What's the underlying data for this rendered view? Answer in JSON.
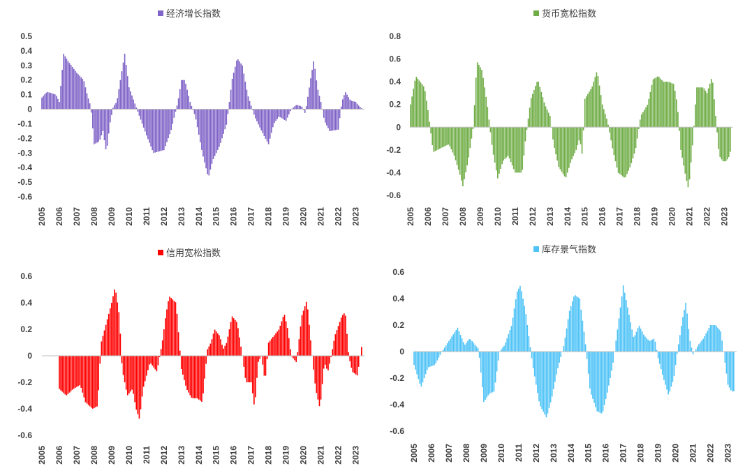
{
  "chart_data": [
    {
      "type": "bar",
      "title": "经济增长指数",
      "color": "#8064C8",
      "xlim": [
        2005,
        2023.5
      ],
      "ylim": [
        -0.6,
        0.5
      ],
      "yticks": [
        "0.5",
        "0.4",
        "0.3",
        "0.2",
        "0.1",
        "0",
        "-0.1",
        "-0.2",
        "-0.3",
        "-0.4",
        "-0.5",
        "-0.6"
      ],
      "xticks": [
        "2005",
        "2006",
        "2007",
        "2008",
        "2009",
        "2010",
        "2011",
        "2012",
        "2013",
        "2014",
        "2015",
        "2016",
        "2017",
        "2018",
        "2019",
        "2020",
        "2021",
        "2022",
        "2023"
      ],
      "legend": "top-center",
      "grid": false,
      "series_points": [
        [
          2005.0,
          0.08
        ],
        [
          2005.3,
          0.12
        ],
        [
          2005.8,
          0.1
        ],
        [
          2006.0,
          0.05
        ],
        [
          2006.25,
          0.38
        ],
        [
          2006.5,
          0.33
        ],
        [
          2007.0,
          0.25
        ],
        [
          2007.4,
          0.2
        ],
        [
          2007.6,
          0.1
        ],
        [
          2007.8,
          0.02
        ],
        [
          2008.0,
          -0.24
        ],
        [
          2008.3,
          -0.22
        ],
        [
          2008.5,
          -0.15
        ],
        [
          2008.7,
          -0.3
        ],
        [
          2008.9,
          -0.1
        ],
        [
          2009.1,
          0.02
        ],
        [
          2009.3,
          0.05
        ],
        [
          2009.5,
          0.2
        ],
        [
          2009.75,
          0.38
        ],
        [
          2010.0,
          0.15
        ],
        [
          2010.3,
          0.05
        ],
        [
          2010.6,
          -0.05
        ],
        [
          2011.0,
          -0.18
        ],
        [
          2011.4,
          -0.3
        ],
        [
          2012.0,
          -0.28
        ],
        [
          2012.4,
          -0.15
        ],
        [
          2012.8,
          0.05
        ],
        [
          2013.0,
          0.2
        ],
        [
          2013.2,
          0.2
        ],
        [
          2013.5,
          0.05
        ],
        [
          2013.8,
          -0.05
        ],
        [
          2014.2,
          -0.3
        ],
        [
          2014.55,
          -0.47
        ],
        [
          2014.8,
          -0.35
        ],
        [
          2015.2,
          -0.25
        ],
        [
          2015.6,
          -0.1
        ],
        [
          2015.9,
          0.2
        ],
        [
          2016.2,
          0.35
        ],
        [
          2016.5,
          0.3
        ],
        [
          2016.8,
          0.1
        ],
        [
          2017.2,
          -0.05
        ],
        [
          2017.6,
          -0.15
        ],
        [
          2018.0,
          -0.24
        ],
        [
          2018.3,
          -0.1
        ],
        [
          2018.6,
          -0.05
        ],
        [
          2019.0,
          -0.08
        ],
        [
          2019.3,
          0.0
        ],
        [
          2019.6,
          0.03
        ],
        [
          2019.9,
          0.02
        ],
        [
          2020.1,
          -0.03
        ],
        [
          2020.4,
          0.2
        ],
        [
          2020.6,
          0.34
        ],
        [
          2020.8,
          0.15
        ],
        [
          2021.0,
          0.05
        ],
        [
          2021.2,
          -0.08
        ],
        [
          2021.5,
          -0.15
        ],
        [
          2022.0,
          -0.14
        ],
        [
          2022.2,
          0.05
        ],
        [
          2022.4,
          0.12
        ],
        [
          2022.7,
          0.06
        ],
        [
          2023.0,
          0.05
        ],
        [
          2023.2,
          0.02
        ],
        [
          2023.4,
          0.0
        ]
      ]
    },
    {
      "type": "bar",
      "title": "货币宽松指数",
      "color": "#70AD47",
      "xlim": [
        2005,
        2023.5
      ],
      "ylim": [
        -0.6,
        0.8
      ],
      "yticks": [
        "0.8",
        "0.6",
        "0.4",
        "0.2",
        "0",
        "-0.2",
        "-0.4",
        "-0.6"
      ],
      "xticks": [
        "2005",
        "2006",
        "2007",
        "2008",
        "2009",
        "2010",
        "2011",
        "2012",
        "2013",
        "2014",
        "2015",
        "2016",
        "2017",
        "2018",
        "2019",
        "2020",
        "2021",
        "2022",
        "2023"
      ],
      "legend": "top-center",
      "grid": false,
      "series_points": [
        [
          2005.0,
          0.2
        ],
        [
          2005.3,
          0.45
        ],
        [
          2005.8,
          0.35
        ],
        [
          2006.0,
          0.15
        ],
        [
          2006.3,
          -0.22
        ],
        [
          2006.8,
          -0.18
        ],
        [
          2007.2,
          -0.15
        ],
        [
          2007.5,
          -0.25
        ],
        [
          2007.8,
          -0.4
        ],
        [
          2008.0,
          -0.52
        ],
        [
          2008.3,
          -0.3
        ],
        [
          2008.6,
          0.0
        ],
        [
          2008.8,
          0.58
        ],
        [
          2009.1,
          0.5
        ],
        [
          2009.4,
          0.2
        ],
        [
          2009.7,
          -0.2
        ],
        [
          2010.0,
          -0.45
        ],
        [
          2010.3,
          -0.3
        ],
        [
          2010.6,
          -0.25
        ],
        [
          2011.0,
          -0.4
        ],
        [
          2011.4,
          -0.4
        ],
        [
          2011.6,
          -0.1
        ],
        [
          2011.9,
          0.25
        ],
        [
          2012.3,
          0.42
        ],
        [
          2012.7,
          0.2
        ],
        [
          2013.0,
          0.1
        ],
        [
          2013.2,
          -0.15
        ],
        [
          2013.5,
          -0.35
        ],
        [
          2013.9,
          -0.45
        ],
        [
          2014.2,
          -0.3
        ],
        [
          2014.5,
          -0.2
        ],
        [
          2014.7,
          -0.1
        ],
        [
          2014.85,
          -0.25
        ],
        [
          2015.0,
          0.25
        ],
        [
          2015.4,
          0.35
        ],
        [
          2015.7,
          0.5
        ],
        [
          2016.0,
          0.2
        ],
        [
          2016.3,
          0.05
        ],
        [
          2016.6,
          -0.2
        ],
        [
          2016.9,
          -0.4
        ],
        [
          2017.3,
          -0.45
        ],
        [
          2017.6,
          -0.35
        ],
        [
          2017.9,
          -0.2
        ],
        [
          2018.2,
          0.1
        ],
        [
          2018.6,
          0.2
        ],
        [
          2018.9,
          0.42
        ],
        [
          2019.2,
          0.45
        ],
        [
          2019.5,
          0.4
        ],
        [
          2019.8,
          0.4
        ],
        [
          2020.1,
          0.38
        ],
        [
          2020.3,
          0.2
        ],
        [
          2020.5,
          -0.2
        ],
        [
          2020.8,
          -0.45
        ],
        [
          2020.95,
          -0.55
        ],
        [
          2021.2,
          -0.1
        ],
        [
          2021.4,
          0.35
        ],
        [
          2021.8,
          0.35
        ],
        [
          2022.0,
          0.3
        ],
        [
          2022.3,
          0.45
        ],
        [
          2022.5,
          0.1
        ],
        [
          2022.7,
          -0.25
        ],
        [
          2022.9,
          -0.3
        ],
        [
          2023.1,
          -0.3
        ],
        [
          2023.3,
          -0.25
        ],
        [
          2023.4,
          -0.15
        ]
      ]
    },
    {
      "type": "bar",
      "title": "信用宽松指数",
      "color": "#FF0000",
      "xlim": [
        2005,
        2023.5
      ],
      "ylim": [
        -0.6,
        0.6
      ],
      "yticks": [
        "0.6",
        "0.4",
        "0.2",
        "0",
        "-0.2",
        "-0.4",
        "-0.6"
      ],
      "xticks": [
        "2005",
        "2006",
        "2007",
        "2008",
        "2009",
        "2010",
        "2011",
        "2012",
        "2013",
        "2014",
        "2015",
        "2016",
        "2017",
        "2018",
        "2019",
        "2020",
        "2021",
        "2022",
        "2023"
      ],
      "legend": "top-center",
      "grid": false,
      "series_points": [
        [
          2006.0,
          -0.25
        ],
        [
          2006.4,
          -0.3
        ],
        [
          2006.8,
          -0.25
        ],
        [
          2007.2,
          -0.22
        ],
        [
          2007.5,
          -0.35
        ],
        [
          2007.9,
          -0.4
        ],
        [
          2008.2,
          -0.38
        ],
        [
          2008.4,
          0.1
        ],
        [
          2008.7,
          0.25
        ],
        [
          2009.0,
          0.4
        ],
        [
          2009.2,
          0.52
        ],
        [
          2009.45,
          0.3
        ],
        [
          2009.6,
          -0.1
        ],
        [
          2009.9,
          -0.3
        ],
        [
          2010.2,
          -0.25
        ],
        [
          2010.4,
          -0.4
        ],
        [
          2010.6,
          -0.48
        ],
        [
          2010.8,
          -0.25
        ],
        [
          2011.2,
          -0.05
        ],
        [
          2011.6,
          -0.12
        ],
        [
          2011.9,
          0.1
        ],
        [
          2012.1,
          0.3
        ],
        [
          2012.3,
          0.45
        ],
        [
          2012.7,
          0.4
        ],
        [
          2013.0,
          -0.1
        ],
        [
          2013.3,
          -0.25
        ],
        [
          2013.6,
          -0.32
        ],
        [
          2013.9,
          -0.32
        ],
        [
          2014.2,
          -0.35
        ],
        [
          2014.5,
          0.05
        ],
        [
          2014.7,
          0.1
        ],
        [
          2014.9,
          0.2
        ],
        [
          2015.2,
          0.15
        ],
        [
          2015.4,
          0.05
        ],
        [
          2015.6,
          0.1
        ],
        [
          2015.9,
          0.3
        ],
        [
          2016.2,
          0.25
        ],
        [
          2016.5,
          0.0
        ],
        [
          2016.7,
          -0.2
        ],
        [
          2017.0,
          -0.2
        ],
        [
          2017.2,
          -0.4
        ],
        [
          2017.4,
          -0.05
        ],
        [
          2017.6,
          0.0
        ],
        [
          2017.8,
          -0.2
        ],
        [
          2018.0,
          0.1
        ],
        [
          2018.3,
          0.15
        ],
        [
          2018.6,
          0.2
        ],
        [
          2018.9,
          0.32
        ],
        [
          2019.1,
          0.2
        ],
        [
          2019.3,
          0.0
        ],
        [
          2019.6,
          -0.05
        ],
        [
          2019.9,
          0.3
        ],
        [
          2020.2,
          0.42
        ],
        [
          2020.5,
          0.0
        ],
        [
          2020.7,
          -0.25
        ],
        [
          2020.95,
          -0.4
        ],
        [
          2021.2,
          -0.05
        ],
        [
          2021.4,
          -0.12
        ],
        [
          2021.6,
          0.0
        ],
        [
          2021.8,
          0.15
        ],
        [
          2022.2,
          0.3
        ],
        [
          2022.4,
          0.33
        ],
        [
          2022.6,
          0.0
        ],
        [
          2022.8,
          -0.12
        ],
        [
          2023.1,
          -0.15
        ],
        [
          2023.3,
          0.05
        ],
        [
          2023.4,
          0.1
        ]
      ]
    },
    {
      "type": "bar",
      "title": "库存景气指数",
      "color": "#4FC3F7",
      "xlim": [
        2005,
        2023.5
      ],
      "ylim": [
        -0.6,
        0.6
      ],
      "yticks": [
        "0.6",
        "0.4",
        "0.2",
        "0",
        "-0.2",
        "-0.4",
        "-0.6"
      ],
      "xticks": [
        "2005",
        "2006",
        "2007",
        "2008",
        "2009",
        "2010",
        "2011",
        "2012",
        "2013",
        "2014",
        "2015",
        "2016",
        "2017",
        "2018",
        "2019",
        "2020",
        "2021",
        "2022",
        "2023"
      ],
      "legend": "top-center",
      "grid": false,
      "series_points": [
        [
          2005.0,
          -0.1
        ],
        [
          2005.4,
          -0.27
        ],
        [
          2005.8,
          -0.12
        ],
        [
          2006.2,
          -0.1
        ],
        [
          2006.6,
          0.0
        ],
        [
          2007.0,
          0.08
        ],
        [
          2007.5,
          0.18
        ],
        [
          2007.9,
          0.05
        ],
        [
          2008.2,
          0.1
        ],
        [
          2008.7,
          0.02
        ],
        [
          2009.0,
          -0.38
        ],
        [
          2009.3,
          -0.32
        ],
        [
          2009.6,
          -0.3
        ],
        [
          2009.9,
          0.0
        ],
        [
          2010.2,
          0.05
        ],
        [
          2010.6,
          0.2
        ],
        [
          2010.9,
          0.45
        ],
        [
          2011.1,
          0.5
        ],
        [
          2011.4,
          0.3
        ],
        [
          2011.8,
          -0.1
        ],
        [
          2012.2,
          -0.4
        ],
        [
          2012.6,
          -0.5
        ],
        [
          2012.9,
          -0.35
        ],
        [
          2013.2,
          -0.15
        ],
        [
          2013.6,
          0.05
        ],
        [
          2013.9,
          0.3
        ],
        [
          2014.2,
          0.43
        ],
        [
          2014.5,
          0.4
        ],
        [
          2014.8,
          0.1
        ],
        [
          2015.1,
          -0.3
        ],
        [
          2015.5,
          -0.45
        ],
        [
          2015.8,
          -0.47
        ],
        [
          2016.1,
          -0.3
        ],
        [
          2016.4,
          -0.1
        ],
        [
          2016.7,
          0.2
        ],
        [
          2017.0,
          0.5
        ],
        [
          2017.3,
          0.3
        ],
        [
          2017.6,
          0.1
        ],
        [
          2017.9,
          0.2
        ],
        [
          2018.2,
          0.12
        ],
        [
          2018.5,
          0.08
        ],
        [
          2018.8,
          0.1
        ],
        [
          2019.0,
          -0.05
        ],
        [
          2019.3,
          -0.2
        ],
        [
          2019.6,
          -0.33
        ],
        [
          2019.9,
          -0.2
        ],
        [
          2020.1,
          0.0
        ],
        [
          2020.4,
          0.25
        ],
        [
          2020.6,
          0.38
        ],
        [
          2020.8,
          0.1
        ],
        [
          2021.0,
          -0.02
        ],
        [
          2021.3,
          0.05
        ],
        [
          2021.6,
          0.1
        ],
        [
          2022.0,
          0.2
        ],
        [
          2022.3,
          0.2
        ],
        [
          2022.6,
          0.15
        ],
        [
          2022.8,
          -0.05
        ],
        [
          2023.0,
          -0.25
        ],
        [
          2023.2,
          -0.3
        ],
        [
          2023.4,
          -0.3
        ]
      ]
    }
  ]
}
